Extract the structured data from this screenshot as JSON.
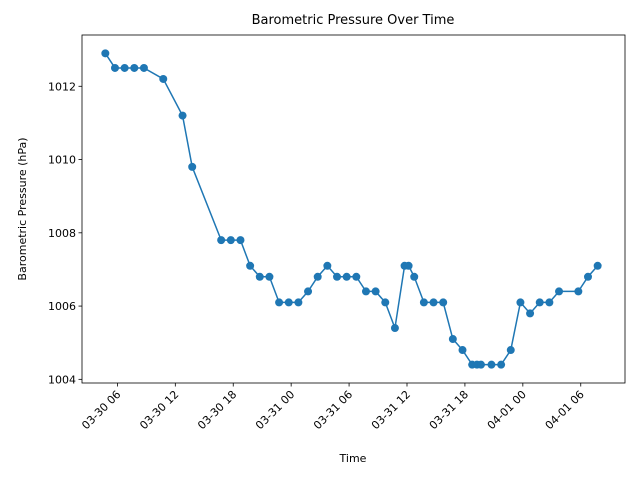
{
  "chart_data": {
    "type": "line",
    "title": "Barometric Pressure Over Time",
    "x_label": "Time",
    "y_label": "Barometric Pressure (hPa)",
    "x": [
      "03-30 04:45",
      "03-30 05:45",
      "03-30 06:45",
      "03-30 07:45",
      "03-30 08:45",
      "03-30 10:45",
      "03-30 12:45",
      "03-30 13:45",
      "03-30 16:45",
      "03-30 17:45",
      "03-30 18:45",
      "03-30 19:45",
      "03-30 20:45",
      "03-30 21:45",
      "03-30 22:45",
      "03-30 23:45",
      "03-31 00:45",
      "03-31 01:45",
      "03-31 02:45",
      "03-31 03:45",
      "03-31 04:45",
      "03-31 05:45",
      "03-31 06:45",
      "03-31 07:45",
      "03-31 08:45",
      "03-31 09:45",
      "03-31 10:45",
      "03-31 11:45",
      "03-31 12:10",
      "03-31 12:45",
      "03-31 13:45",
      "03-31 14:45",
      "03-31 15:45",
      "03-31 16:45",
      "03-31 17:45",
      "03-31 18:45",
      "03-31 19:15",
      "03-31 19:40",
      "03-31 20:45",
      "03-31 21:45",
      "03-31 22:45",
      "03-31 23:45",
      "04-01 00:45",
      "04-01 01:45",
      "04-01 02:45",
      "04-01 03:45",
      "04-01 05:45",
      "04-01 06:45",
      "04-01 07:45"
    ],
    "series": [
      {
        "name": "Pressure",
        "color": "#1f77b4",
        "values": [
          1012.9,
          1012.5,
          1012.5,
          1012.5,
          1012.5,
          1012.2,
          1011.2,
          1009.8,
          1007.8,
          1007.8,
          1007.8,
          1007.1,
          1006.8,
          1006.8,
          1006.1,
          1006.1,
          1006.1,
          1006.4,
          1006.8,
          1007.1,
          1006.8,
          1006.8,
          1006.8,
          1006.4,
          1006.4,
          1006.1,
          1005.4,
          1007.1,
          1007.1,
          1006.8,
          1006.1,
          1006.1,
          1006.1,
          1005.1,
          1004.8,
          1004.4,
          1004.4,
          1004.4,
          1004.4,
          1004.4,
          1004.8,
          1006.1,
          1005.8,
          1006.1,
          1006.1,
          1006.4,
          1006.4,
          1006.8,
          1007.1
        ]
      }
    ],
    "xlim": [
      "03-30 02:20",
      "04-01 10:35"
    ],
    "xticks": [
      "03-30 06",
      "03-30 12",
      "03-30 18",
      "03-31 00",
      "03-31 06",
      "03-31 12",
      "03-31 18",
      "04-01 00",
      "04-01 06"
    ],
    "ylim": [
      1003.9,
      1013.4
    ],
    "yticks": [
      1004,
      1006,
      1008,
      1010,
      1012
    ],
    "grid": false
  }
}
